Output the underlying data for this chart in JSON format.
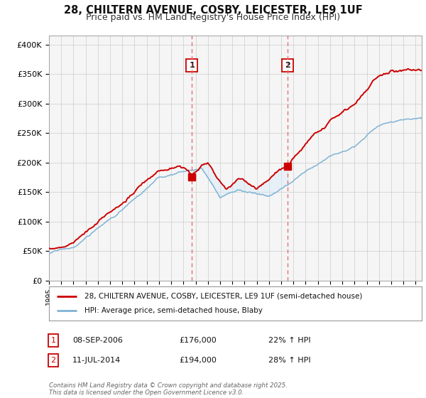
{
  "title_line1": "28, CHILTERN AVENUE, COSBY, LEICESTER, LE9 1UF",
  "title_line2": "Price paid vs. HM Land Registry's House Price Index (HPI)",
  "title_fontsize": 10.5,
  "subtitle_fontsize": 9,
  "ylabel_ticks": [
    "£0",
    "£50K",
    "£100K",
    "£150K",
    "£200K",
    "£250K",
    "£300K",
    "£350K",
    "£400K"
  ],
  "ytick_values": [
    0,
    50000,
    100000,
    150000,
    200000,
    250000,
    300000,
    350000,
    400000
  ],
  "ylim": [
    0,
    415000
  ],
  "xlim_start": 1995.0,
  "xlim_end": 2025.5,
  "xtick_years": [
    1995,
    1996,
    1997,
    1998,
    1999,
    2000,
    2001,
    2002,
    2003,
    2004,
    2005,
    2006,
    2007,
    2008,
    2009,
    2010,
    2011,
    2012,
    2013,
    2014,
    2015,
    2016,
    2017,
    2018,
    2019,
    2020,
    2021,
    2022,
    2023,
    2024,
    2025
  ],
  "red_line_color": "#cc0000",
  "blue_line_color": "#7fb3d3",
  "shade_color": "#d6eaf8",
  "grid_color": "#cccccc",
  "marker1_year": 2006.69,
  "marker1_value": 176000,
  "marker1_label": "1",
  "marker1_date": "08-SEP-2006",
  "marker1_price": "£176,000",
  "marker1_hpi": "22% ↑ HPI",
  "marker2_year": 2014.53,
  "marker2_value": 194000,
  "marker2_label": "2",
  "marker2_date": "11-JUL-2014",
  "marker2_price": "£194,000",
  "marker2_hpi": "28% ↑ HPI",
  "vline_color": "#e87070",
  "legend_label_red": "28, CHILTERN AVENUE, COSBY, LEICESTER, LE9 1UF (semi-detached house)",
  "legend_label_blue": "HPI: Average price, semi-detached house, Blaby",
  "footnote": "Contains HM Land Registry data © Crown copyright and database right 2025.\nThis data is licensed under the Open Government Licence v3.0.",
  "background_color": "#ffffff",
  "plot_bg_color": "#f5f5f5"
}
